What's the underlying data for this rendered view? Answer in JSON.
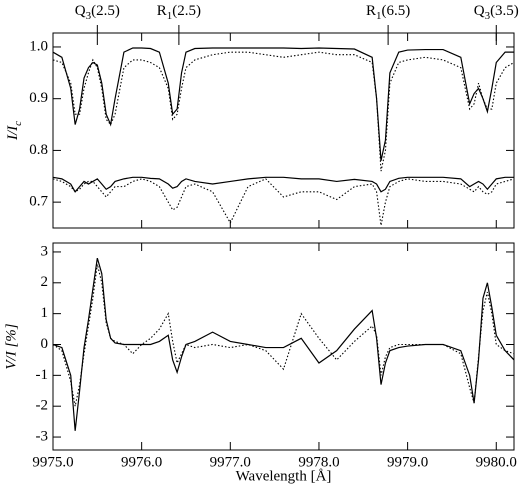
{
  "chart_data": [
    {
      "type": "line",
      "ylabel": {
        "main": "I/I",
        "sub": "c"
      },
      "line_marks": [
        {
          "x": 9975.5,
          "label": {
            "name": "Q",
            "sub": "3",
            "j": "(2.5)"
          }
        },
        {
          "x": 9976.42,
          "label": {
            "name": "R",
            "sub": "1",
            "j": "(2.5)"
          }
        },
        {
          "x": 9978.78,
          "label": {
            "name": "R",
            "sub": "1",
            "j": "(6.5)"
          }
        },
        {
          "x": 9980.0,
          "label": {
            "name": "Q",
            "sub": "3",
            "j": "(3.5)"
          }
        }
      ],
      "x": [
        9975.0,
        9975.1,
        9975.2,
        9975.25,
        9975.3,
        9975.35,
        9975.4,
        9975.45,
        9975.5,
        9975.55,
        9975.6,
        9975.65,
        9975.7,
        9975.8,
        9975.9,
        9976.0,
        9976.1,
        9976.2,
        9976.3,
        9976.35,
        9976.4,
        9976.45,
        9976.5,
        9976.6,
        9976.8,
        9977.0,
        9977.2,
        9977.4,
        9977.6,
        9977.8,
        9978.0,
        9978.2,
        9978.4,
        9978.6,
        9978.65,
        9978.7,
        9978.75,
        9978.8,
        9978.9,
        9979.0,
        9979.2,
        9979.4,
        9979.6,
        9979.7,
        9979.75,
        9979.8,
        9979.85,
        9979.9,
        9979.95,
        9980.0,
        9980.1,
        9980.2
      ],
      "series": [
        {
          "color": "#000",
          "style": "solid",
          "values": [
            0.99,
            0.98,
            0.92,
            0.85,
            0.88,
            0.94,
            0.96,
            0.97,
            0.965,
            0.93,
            0.87,
            0.85,
            0.9,
            0.99,
            0.998,
            0.998,
            0.997,
            0.99,
            0.93,
            0.87,
            0.88,
            0.95,
            0.99,
            0.997,
            0.998,
            0.998,
            0.998,
            0.998,
            0.998,
            0.997,
            0.998,
            0.997,
            0.996,
            0.98,
            0.9,
            0.78,
            0.82,
            0.95,
            0.99,
            0.994,
            0.995,
            0.995,
            0.98,
            0.89,
            0.91,
            0.92,
            0.9,
            0.875,
            0.92,
            0.97,
            0.99,
            0.99
          ]
        },
        {
          "color": "#000",
          "style": "dotted",
          "values": [
            0.975,
            0.97,
            0.93,
            0.87,
            0.87,
            0.92,
            0.95,
            0.975,
            0.96,
            0.92,
            0.86,
            0.85,
            0.87,
            0.96,
            0.975,
            0.975,
            0.97,
            0.96,
            0.92,
            0.86,
            0.87,
            0.92,
            0.96,
            0.975,
            0.985,
            0.99,
            0.99,
            0.985,
            0.98,
            0.985,
            0.99,
            0.985,
            0.985,
            0.97,
            0.9,
            0.76,
            0.8,
            0.93,
            0.97,
            0.975,
            0.98,
            0.975,
            0.96,
            0.88,
            0.89,
            0.93,
            0.9,
            0.88,
            0.88,
            0.93,
            0.96,
            0.97
          ]
        },
        {
          "color": "#000",
          "style": "solid",
          "values": [
            0.748,
            0.745,
            0.735,
            0.72,
            0.73,
            0.74,
            0.735,
            0.74,
            0.745,
            0.735,
            0.725,
            0.73,
            0.74,
            0.745,
            0.748,
            0.748,
            0.746,
            0.745,
            0.735,
            0.727,
            0.73,
            0.74,
            0.745,
            0.74,
            0.735,
            0.74,
            0.745,
            0.748,
            0.748,
            0.745,
            0.745,
            0.74,
            0.744,
            0.74,
            0.735,
            0.72,
            0.725,
            0.74,
            0.746,
            0.748,
            0.748,
            0.748,
            0.745,
            0.73,
            0.735,
            0.74,
            0.735,
            0.725,
            0.735,
            0.745,
            0.748,
            0.748
          ]
        },
        {
          "color": "#000",
          "style": "dotted",
          "values": [
            0.745,
            0.74,
            0.73,
            0.72,
            0.725,
            0.735,
            0.74,
            0.74,
            0.73,
            0.72,
            0.71,
            0.72,
            0.73,
            0.73,
            0.74,
            0.745,
            0.74,
            0.73,
            0.7,
            0.685,
            0.69,
            0.71,
            0.73,
            0.735,
            0.72,
            0.66,
            0.73,
            0.745,
            0.71,
            0.72,
            0.72,
            0.705,
            0.73,
            0.735,
            0.72,
            0.655,
            0.7,
            0.73,
            0.74,
            0.745,
            0.74,
            0.74,
            0.735,
            0.725,
            0.72,
            0.73,
            0.72,
            0.715,
            0.72,
            0.735,
            0.74,
            0.745
          ]
        }
      ],
      "xlim": [
        9975.0,
        9980.2
      ],
      "xticks": [
        9975,
        9976,
        9977,
        9978,
        9979,
        9980
      ],
      "ylim": [
        0.65,
        1.027
      ],
      "yticks": [
        0.7,
        0.8,
        0.9,
        {
          "value": 1,
          "label": "1.0"
        }
      ]
    },
    {
      "type": "line",
      "ylabel": "V/I [%]",
      "xlabel": "Wavelength [Å]",
      "x": [
        9975.0,
        9975.1,
        9975.2,
        9975.25,
        9975.3,
        9975.35,
        9975.4,
        9975.45,
        9975.5,
        9975.55,
        9975.6,
        9975.65,
        9975.7,
        9975.8,
        9975.9,
        9976.0,
        9976.1,
        9976.2,
        9976.3,
        9976.35,
        9976.4,
        9976.45,
        9976.5,
        9976.6,
        9976.8,
        9977.0,
        9977.2,
        9977.4,
        9977.6,
        9977.8,
        9978.0,
        9978.2,
        9978.4,
        9978.6,
        9978.65,
        9978.7,
        9978.75,
        9978.8,
        9978.9,
        9979.0,
        9979.2,
        9979.4,
        9979.6,
        9979.7,
        9979.75,
        9979.8,
        9979.85,
        9979.9,
        9979.95,
        9980.0,
        9980.1,
        9980.2
      ],
      "series": [
        {
          "color": "#000",
          "style": "solid",
          "values": [
            0,
            -0.1,
            -1.0,
            -2.8,
            -1.5,
            -0.1,
            0.8,
            1.8,
            2.8,
            2.3,
            0.8,
            0.2,
            0.05,
            0,
            0,
            0,
            0,
            0.1,
            0.3,
            -0.5,
            -0.9,
            -0.4,
            0,
            0.1,
            0.4,
            0.1,
            0,
            -0.1,
            -0.1,
            0.2,
            -0.6,
            -0.2,
            0.5,
            1.1,
            0.2,
            -1.3,
            -0.6,
            -0.2,
            -0.1,
            -0.05,
            0,
            0,
            -0.2,
            -1.0,
            -1.9,
            -0.5,
            1.5,
            2.0,
            1.2,
            0.3,
            -0.2,
            -0.5
          ]
        },
        {
          "color": "#000",
          "style": "dotted",
          "values": [
            0,
            -0.2,
            -1.2,
            -2.0,
            -1.3,
            -0.3,
            0.6,
            1.5,
            2.6,
            2.0,
            0.7,
            0.2,
            0.1,
            0,
            -0.3,
            0,
            0.2,
            0.5,
            1.0,
            0.1,
            -0.6,
            -0.3,
            0,
            -0.1,
            0,
            -0.1,
            0,
            -0.2,
            -0.8,
            1.0,
            0.2,
            -0.5,
            0.1,
            0.6,
            0.3,
            -1.0,
            -0.4,
            -0.1,
            0,
            0,
            0,
            0,
            -0.3,
            -1.4,
            -1.9,
            -0.4,
            1.1,
            1.7,
            1.0,
            0,
            -0.2,
            -0.3
          ]
        }
      ],
      "xlim": [
        9975.0,
        9980.2
      ],
      "xticks": [
        {
          "value": 9975,
          "label": "9975.0"
        },
        {
          "value": 9976,
          "label": "9976.0"
        },
        {
          "value": 9977,
          "label": "9977.0"
        },
        {
          "value": 9978,
          "label": "9978.0"
        },
        {
          "value": 9979,
          "label": "9979.0"
        },
        {
          "value": 9980,
          "label": "9980.0"
        }
      ],
      "ylim": [
        -3.42,
        3.29
      ],
      "yticks": [
        -3,
        -2,
        -1,
        0,
        1,
        2,
        3
      ]
    }
  ]
}
